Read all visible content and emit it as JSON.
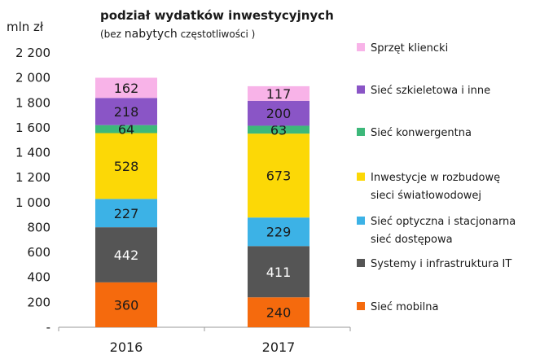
{
  "chart_data": {
    "type": "bar",
    "stacked": true,
    "title": "podział wydatków  inwestycyjnych",
    "subtitle_parts": [
      "(bez ",
      "nabytych",
      " częstotliwości )"
    ],
    "ylabel": "mln zł",
    "ylim": [
      0,
      2200
    ],
    "y_ticks": [
      "-",
      "200",
      "400",
      "600",
      "800",
      "1 000",
      "1 200",
      "1 400",
      "1 600",
      "1 800",
      "2 000",
      "2 200"
    ],
    "categories": [
      "2016",
      "2017"
    ],
    "series": [
      {
        "name": "Sieć mobilna",
        "color": "#f56a0d",
        "values": [
          360,
          240
        ]
      },
      {
        "name": "Systemy i infrastruktura IT",
        "color": "#555555",
        "values": [
          442,
          411
        ]
      },
      {
        "name": "Sieć optyczna i stacjonarna sieć dostępowa",
        "color": "#3cb2e6",
        "values": [
          227,
          229
        ]
      },
      {
        "name": "Inwestycje w rozbudowę sieci światłowodowej",
        "color": "#fcd806",
        "values": [
          528,
          673
        ]
      },
      {
        "name": "Sieć konwergentna",
        "color": "#3db87a",
        "values": [
          64,
          63
        ]
      },
      {
        "name": "Sieć szkieletowa i inne",
        "color": "#8a55c6",
        "values": [
          218,
          200
        ]
      },
      {
        "name": "Sprzęt kliencki",
        "color": "#f8b3e8",
        "values": [
          162,
          117
        ]
      }
    ],
    "legend": {
      "position": "right",
      "items": [
        {
          "lines": [
            "Sprzęt kliencki"
          ],
          "color": "#f8b3e8"
        },
        {
          "lines": [
            "Sieć szkieletowa i inne"
          ],
          "color": "#8a55c6"
        },
        {
          "lines": [
            "Sieć konwergentna"
          ],
          "color": "#3db87a"
        },
        {
          "lines": [
            "Inwestycje w rozbudowę",
            "sieci światłowodowej"
          ],
          "color": "#fcd806"
        },
        {
          "lines": [
            "Sieć optyczna i stacjonarna",
            "sieć dostępowa"
          ],
          "color": "#3cb2e6"
        },
        {
          "lines": [
            "Systemy i infrastruktura IT"
          ],
          "color": "#555555"
        },
        {
          "lines": [
            "Sieć mobilna"
          ],
          "color": "#f56a0d"
        }
      ]
    },
    "grid": false
  }
}
